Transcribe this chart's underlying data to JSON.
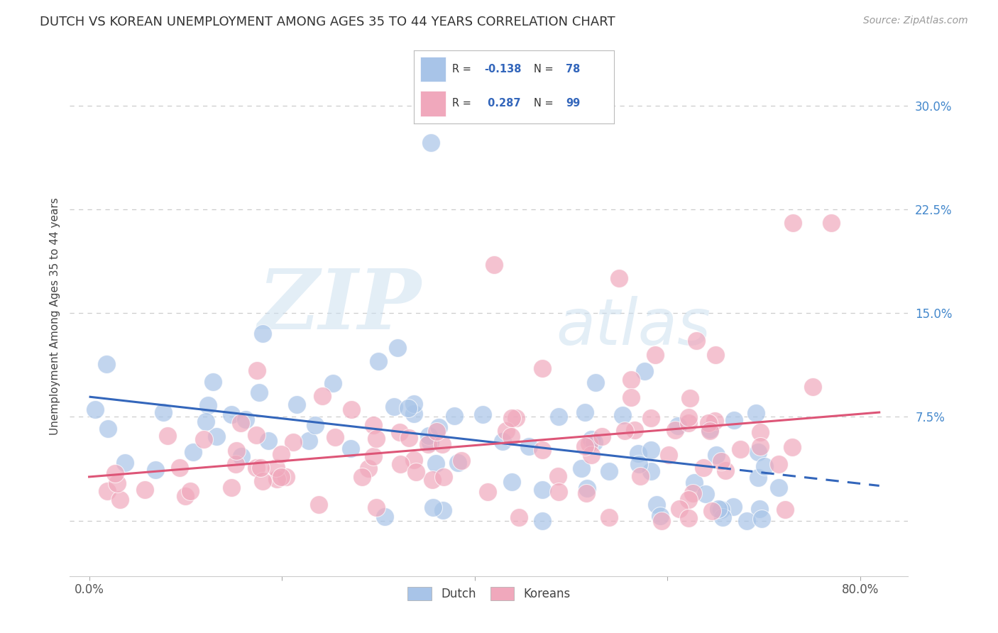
{
  "title": "DUTCH VS KOREAN UNEMPLOYMENT AMONG AGES 35 TO 44 YEARS CORRELATION CHART",
  "source": "Source: ZipAtlas.com",
  "ylabel": "Unemployment Among Ages 35 to 44 years",
  "ytick_values": [
    0.0,
    0.075,
    0.15,
    0.225,
    0.3
  ],
  "ytick_labels": [
    "",
    "7.5%",
    "15.0%",
    "22.5%",
    "30.0%"
  ],
  "xtick_values": [
    0.0,
    0.8
  ],
  "xtick_labels": [
    "0.0%",
    "80.0%"
  ],
  "xlim": [
    -0.02,
    0.85
  ],
  "ylim": [
    -0.04,
    0.335
  ],
  "dutch_color": "#a8c4e8",
  "korean_color": "#f0a8bc",
  "dutch_line_color": "#3366bb",
  "korean_line_color": "#dd5577",
  "dutch_R": -0.138,
  "dutch_N": 78,
  "korean_R": 0.287,
  "korean_N": 99,
  "watermark_text": "ZIPatlas",
  "watermark_zip": "ZIP",
  "watermark_atlas": "atlas",
  "background_color": "#ffffff",
  "grid_color": "#cccccc",
  "legend_dutch_label": "Dutch",
  "legend_korean_label": "Koreans",
  "legend_R_color": "#3366bb",
  "title_fontsize": 13,
  "source_fontsize": 10,
  "axis_label_fontsize": 11,
  "tick_fontsize": 12,
  "ytick_color": "#4488cc"
}
